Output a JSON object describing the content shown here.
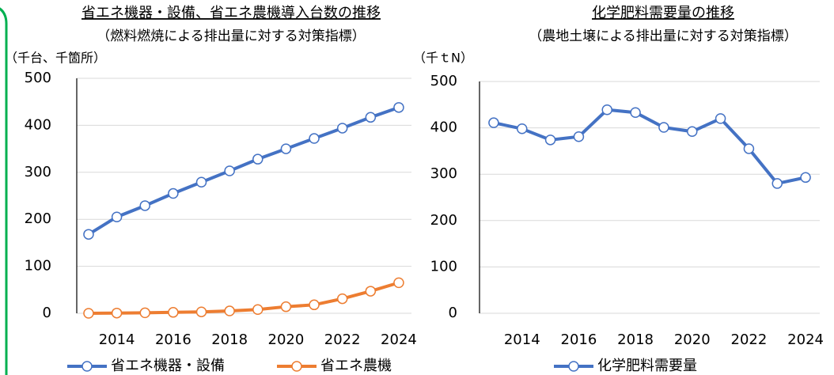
{
  "chart_data": [
    {
      "type": "line",
      "title": "省エネ機器・設備、省エネ農機導入台数の推移",
      "subtitle": "（燃料燃焼による排出量に対する対策指標）",
      "y_label": "（千台、千箇所）",
      "x": [
        2013,
        2014,
        2015,
        2016,
        2017,
        2018,
        2019,
        2020,
        2021,
        2022,
        2023,
        2024
      ],
      "series": [
        {
          "name": "省エネ機器・設備",
          "color": "#4472c4",
          "values": [
            168,
            205,
            229,
            255,
            279,
            303,
            328,
            350,
            372,
            394,
            417,
            438
          ]
        },
        {
          "name": "省エネ農機",
          "color": "#ed7d31",
          "values": [
            0,
            0.5,
            1,
            2,
            3,
            5,
            8,
            14,
            18,
            31,
            47,
            65
          ]
        }
      ],
      "xlim": [
        2012.58,
        2024.45
      ],
      "xticks": [
        2014,
        2016,
        2018,
        2020,
        2022,
        2024
      ],
      "ylim": [
        0,
        500
      ],
      "yticks": [
        0,
        100,
        200,
        300,
        400,
        500
      ],
      "grid": true
    },
    {
      "type": "line",
      "title": "化学肥料需要量の推移",
      "subtitle": "（農地土壌による排出量に対する対策指標）",
      "y_label": "（千ｔN）",
      "x": [
        2013,
        2014,
        2015,
        2016,
        2017,
        2018,
        2019,
        2020,
        2021,
        2022,
        2023,
        2024
      ],
      "series": [
        {
          "name": "化学肥料需要量",
          "color": "#4472c4",
          "values": [
            411,
            398,
            374,
            381,
            439,
            433,
            401,
            392,
            420,
            355,
            280,
            293
          ]
        }
      ],
      "xlim": [
        2012.5,
        2024.5
      ],
      "xticks": [
        2014,
        2016,
        2018,
        2020,
        2022,
        2024
      ],
      "ylim": [
        0,
        500
      ],
      "yticks": [
        0,
        100,
        200,
        300,
        400,
        500
      ],
      "grid": true
    }
  ]
}
